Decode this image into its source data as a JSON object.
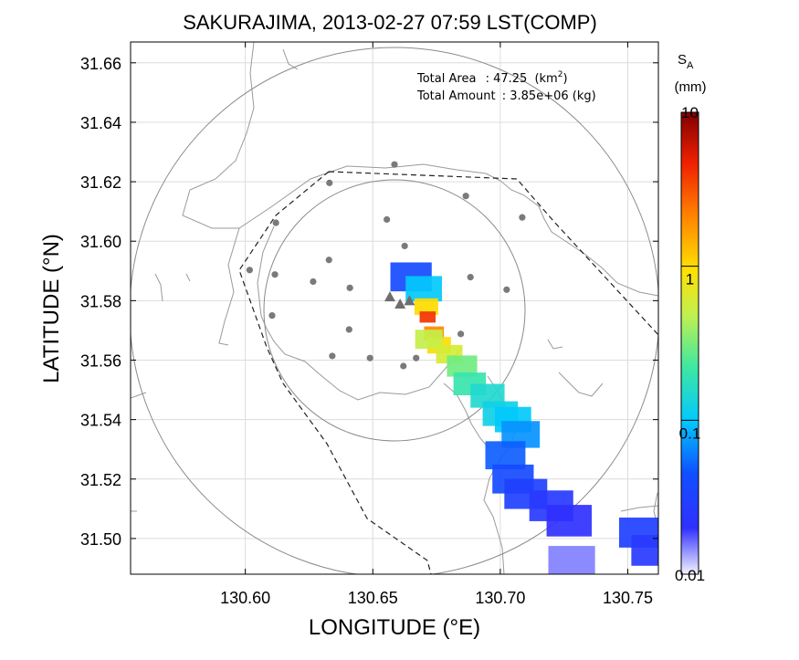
{
  "chart_data": {
    "type": "heatmap",
    "title": "SAKURAJIMA, 2013-02-27 07:59 LST(COMP)",
    "xlabel": "LONGITUDE (°E)",
    "ylabel": "LATITUDE (°N)",
    "xlim": [
      130.555,
      130.762
    ],
    "ylim": [
      31.488,
      31.667
    ],
    "x_ticks": [
      130.6,
      130.65,
      130.7,
      130.75
    ],
    "x_tick_labels": [
      "130.60",
      "130.65",
      "130.70",
      "130.75"
    ],
    "y_ticks": [
      31.5,
      31.52,
      31.54,
      31.56,
      31.58,
      31.6,
      31.62,
      31.64,
      31.66
    ],
    "y_tick_labels": [
      "31.50",
      "31.52",
      "31.54",
      "31.56",
      "31.58",
      "31.60",
      "31.62",
      "31.64",
      "31.66"
    ],
    "grid": true,
    "annotations": {
      "total_area_label": "Total Area",
      "total_area_sep": ": 47.25",
      "total_area_unit": "(km",
      "total_area_sup": "2",
      "total_area_close": ")",
      "total_amount_label": "Total Amount",
      "total_amount_value": ": 3.85e+06 (kg)"
    },
    "colorbar": {
      "label_main": "S",
      "label_sub": "A",
      "unit": "(mm)",
      "scale": "log",
      "range": [
        0.01,
        10
      ],
      "tick_labels": [
        "10",
        "1",
        "0.1",
        "0.01"
      ],
      "tick_values": [
        10,
        1,
        0.1,
        0.01
      ]
    },
    "vents": [
      {
        "lon": 130.6567,
        "lat": 31.5813
      },
      {
        "lon": 130.6607,
        "lat": 31.5789
      },
      {
        "lon": 130.6644,
        "lat": 31.58
      }
    ],
    "stations": [
      {
        "lon": 130.6585,
        "lat": 31.6258
      },
      {
        "lon": 130.633,
        "lat": 31.6196
      },
      {
        "lon": 130.6865,
        "lat": 31.6152
      },
      {
        "lon": 130.612,
        "lat": 31.6062
      },
      {
        "lon": 130.6555,
        "lat": 31.6073
      },
      {
        "lon": 130.7086,
        "lat": 31.608
      },
      {
        "lon": 130.6625,
        "lat": 31.5984
      },
      {
        "lon": 130.6017,
        "lat": 31.5903
      },
      {
        "lon": 130.6116,
        "lat": 31.5888
      },
      {
        "lon": 130.6328,
        "lat": 31.5937
      },
      {
        "lon": 130.6883,
        "lat": 31.5879
      },
      {
        "lon": 130.6266,
        "lat": 31.5864
      },
      {
        "lon": 130.641,
        "lat": 31.5843
      },
      {
        "lon": 130.7025,
        "lat": 31.5837
      },
      {
        "lon": 130.6105,
        "lat": 31.575
      },
      {
        "lon": 130.6407,
        "lat": 31.5703
      },
      {
        "lon": 130.6845,
        "lat": 31.5688
      },
      {
        "lon": 130.6341,
        "lat": 31.5614
      },
      {
        "lon": 130.6489,
        "lat": 31.5607
      },
      {
        "lon": 130.662,
        "lat": 31.558
      },
      {
        "lon": 130.667,
        "lat": 31.5607
      }
    ],
    "range_circles": [
      {
        "center_lon": 130.6518,
        "center_lat": 31.579,
        "radius_deg_lon": 0.07
      },
      {
        "center_lon": 130.6563,
        "center_lat": 31.574,
        "radius_deg_lon": 0.1074
      }
    ],
    "ash_cells": [
      {
        "lon": 130.665,
        "lat": 31.588,
        "value": 0.04
      },
      {
        "lon": 130.67,
        "lat": 31.584,
        "value": 0.1
      },
      {
        "lon": 130.671,
        "lat": 31.578,
        "value": 1.0
      },
      {
        "lon": 130.6715,
        "lat": 31.5745,
        "value": 4.0
      },
      {
        "lon": 130.674,
        "lat": 31.569,
        "value": 2.0
      },
      {
        "lon": 130.676,
        "lat": 31.565,
        "value": 1.0
      },
      {
        "lon": 130.672,
        "lat": 31.567,
        "value": 0.5
      },
      {
        "lon": 130.68,
        "lat": 31.562,
        "value": 0.6
      },
      {
        "lon": 130.685,
        "lat": 31.558,
        "value": 0.3
      },
      {
        "lon": 130.688,
        "lat": 31.552,
        "value": 0.2
      },
      {
        "lon": 130.695,
        "lat": 31.548,
        "value": 0.15
      },
      {
        "lon": 130.7,
        "lat": 31.542,
        "value": 0.12
      },
      {
        "lon": 130.705,
        "lat": 31.54,
        "value": 0.1
      },
      {
        "lon": 130.708,
        "lat": 31.535,
        "value": 0.07
      },
      {
        "lon": 130.702,
        "lat": 31.528,
        "value": 0.05
      },
      {
        "lon": 130.705,
        "lat": 31.52,
        "value": 0.04
      },
      {
        "lon": 130.71,
        "lat": 31.515,
        "value": 0.03
      },
      {
        "lon": 130.72,
        "lat": 31.511,
        "value": 0.025
      },
      {
        "lon": 130.727,
        "lat": 31.506,
        "value": 0.02
      },
      {
        "lon": 130.755,
        "lat": 31.502,
        "value": 0.03
      },
      {
        "lon": 130.76,
        "lat": 31.496,
        "value": 0.025
      },
      {
        "lon": 130.728,
        "lat": 31.492,
        "value": 0.015
      }
    ]
  }
}
